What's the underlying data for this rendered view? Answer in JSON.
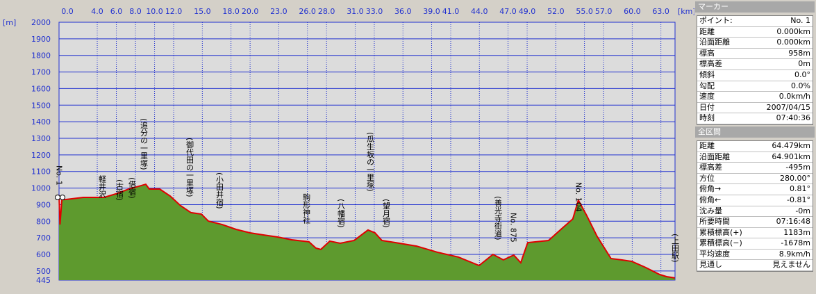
{
  "chart_data": {
    "type": "area",
    "x_axis_label": "[km]",
    "y_axis_label": "[m]",
    "xlim": [
      0,
      64.479
    ],
    "ylim": [
      445,
      2000
    ],
    "xticks": [
      {
        "value": 0,
        "label": "0.0"
      },
      {
        "value": 4,
        "label": "4.0"
      },
      {
        "value": 6,
        "label": "6.0"
      },
      {
        "value": 8,
        "label": "8.0"
      },
      {
        "value": 10,
        "label": "10.0"
      },
      {
        "value": 12,
        "label": "12.0"
      },
      {
        "value": 15,
        "label": "15.0"
      },
      {
        "value": 18,
        "label": "18.0"
      },
      {
        "value": 20,
        "label": "20.0"
      },
      {
        "value": 23,
        "label": "23.0"
      },
      {
        "value": 26,
        "label": "26.0"
      },
      {
        "value": 28,
        "label": "28.0"
      },
      {
        "value": 31,
        "label": "31.0"
      },
      {
        "value": 33,
        "label": "33.0"
      },
      {
        "value": 36,
        "label": "36.0"
      },
      {
        "value": 39,
        "label": "39.0"
      },
      {
        "value": 41,
        "label": "41.0"
      },
      {
        "value": 44,
        "label": "44.0"
      },
      {
        "value": 47,
        "label": "47.0"
      },
      {
        "value": 49,
        "label": "49.0"
      },
      {
        "value": 52,
        "label": "52.0"
      },
      {
        "value": 55,
        "label": "55.0"
      },
      {
        "value": 57,
        "label": "57.0"
      },
      {
        "value": 60,
        "label": "60.0"
      },
      {
        "value": 63,
        "label": "63.0"
      }
    ],
    "yticks": [
      2000,
      1900,
      1800,
      1700,
      1600,
      1500,
      1400,
      1300,
      1200,
      1100,
      1000,
      900,
      800,
      700,
      600,
      500,
      445
    ],
    "grid": true,
    "series": [
      {
        "line_color": "#e00000",
        "color": "#5e9a2e",
        "x": [
          0,
          0.1,
          0.3,
          0.73,
          2.54,
          4.72,
          6.18,
          7.27,
          8.36,
          9.08,
          9.45,
          10.54,
          11.63,
          12.72,
          13.81,
          14.9,
          15.63,
          17.08,
          18.53,
          19.99,
          21.44,
          22.89,
          24.35,
          26.16,
          26.89,
          27.4,
          28.34,
          29.43,
          30.89,
          32.34,
          33.07,
          33.79,
          35.25,
          37.43,
          39.61,
          41.79,
          43.97,
          45.42,
          46.51,
          47.6,
          48.33,
          49.06,
          51.24,
          52.69,
          53.78,
          54.36,
          55.23,
          56.32,
          57.78,
          58.87,
          59.96,
          61.41,
          62.86,
          63.59,
          64.46
        ],
        "values": [
          958,
          780,
          930,
          931,
          944,
          944,
          969,
          994,
          1011,
          1023,
          994,
          994,
          952,
          894,
          852,
          843,
          801,
          780,
          751,
          730,
          717,
          705,
          688,
          676,
          638,
          630,
          680,
          667,
          684,
          747,
          730,
          684,
          671,
          650,
          613,
          584,
          533,
          600,
          567,
          596,
          550,
          671,
          684,
          759,
          814,
          927,
          835,
          709,
          575,
          567,
          558,
          521,
          479,
          466,
          458
        ]
      }
    ],
    "annotations": [
      "No. 1",
      "軽井沢",
      "(古宿)",
      "(借宿)",
      "(追分の一里塚)",
      "(御代田の一里塚)",
      "(小田井宿)",
      "駒形神社",
      "(八幡宿)",
      "(瓜生坂の一里塚)",
      "(望月宿)",
      "(善光寺街道)",
      "No. 875",
      "No. 104",
      "(上田駅)"
    ]
  },
  "panel": {
    "marker": {
      "title": "マーカー",
      "rows": [
        [
          "ポイント:",
          "No. 1"
        ],
        [
          "距離",
          "0.000km"
        ],
        [
          "沿面距離",
          "0.000km"
        ],
        [
          "標高",
          "958m"
        ],
        [
          "標高差",
          "0m"
        ],
        [
          "傾斜",
          "0.0°"
        ],
        [
          "勾配",
          "0.0%"
        ],
        [
          "速度",
          "0.0km/h"
        ],
        [
          "日付",
          "2007/04/15"
        ],
        [
          "時刻",
          "07:40:36"
        ]
      ]
    },
    "total": {
      "title": "全区間",
      "rows": [
        [
          "距離",
          "64.479km"
        ],
        [
          "沿面距離",
          "64.901km"
        ],
        [
          "標高差",
          "-495m"
        ],
        [
          "方位",
          "280.00°"
        ],
        [
          "俯角→",
          "0.81°"
        ],
        [
          "俯角←",
          "-0.81°"
        ],
        [
          "沈み量",
          "-0m"
        ],
        [
          "所要時間",
          "07:16:48"
        ],
        [
          "累積標高(+)",
          "1183m"
        ],
        [
          "累積標高(−)",
          "-1678m"
        ],
        [
          "平均速度",
          "8.9km/h"
        ],
        [
          "見通し",
          "見えません"
        ]
      ]
    }
  }
}
